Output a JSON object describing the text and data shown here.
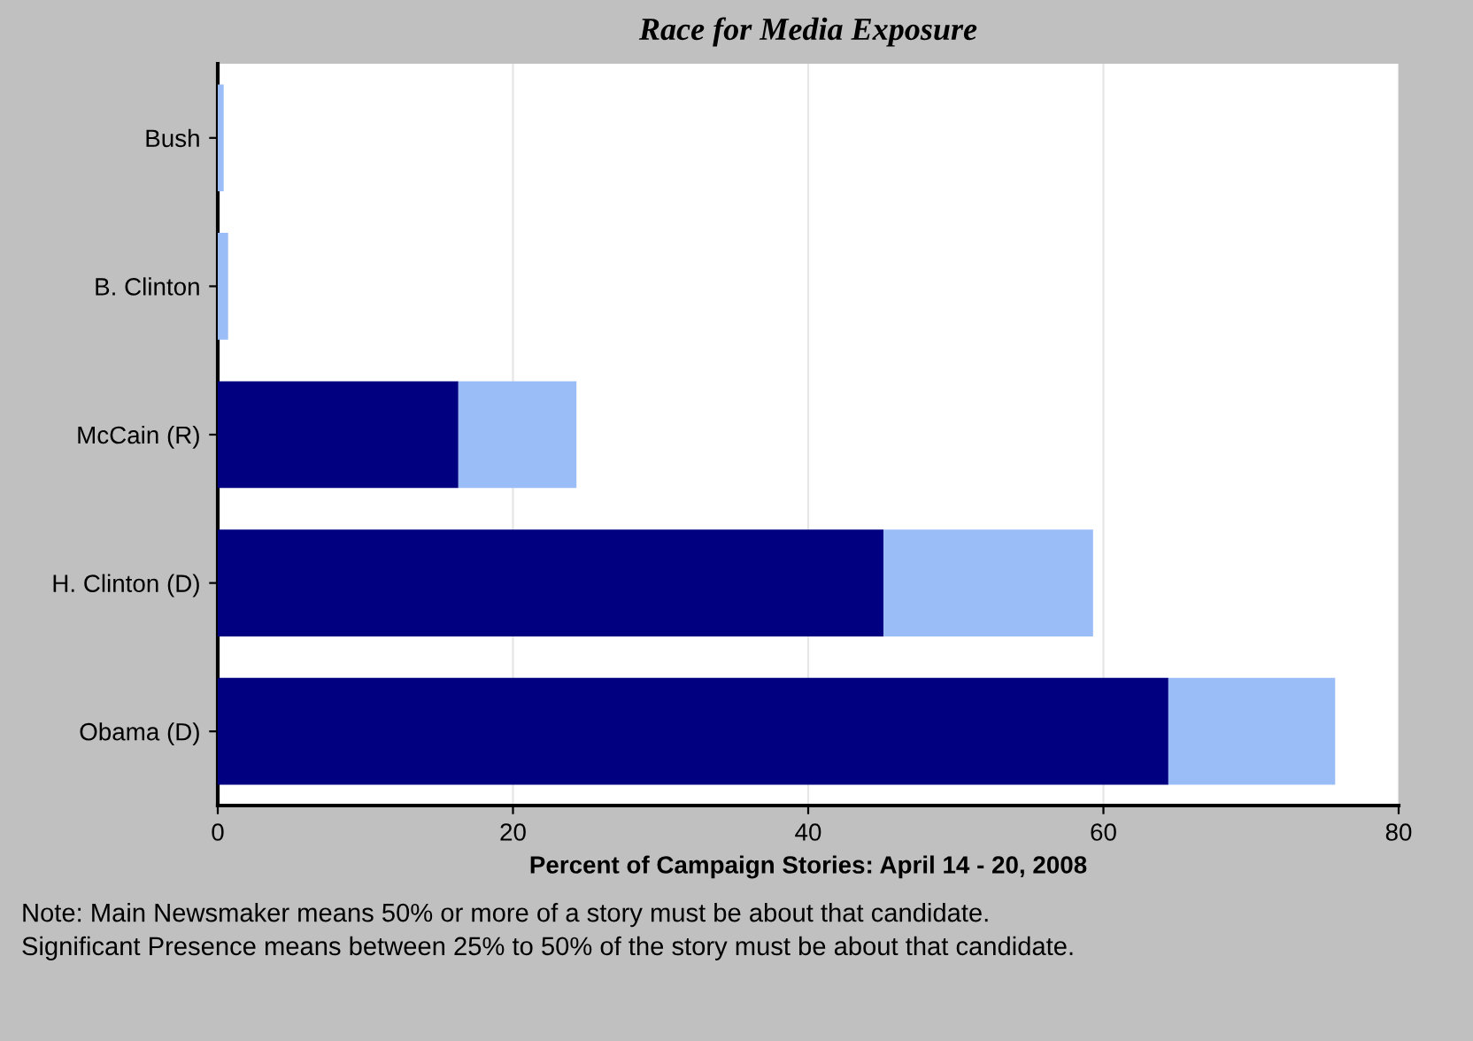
{
  "chart_data": {
    "type": "bar",
    "orientation": "horizontal",
    "stacked": true,
    "title": "Race for Media Exposure",
    "xlabel": "Percent of Campaign Stories: April 14 - 20, 2008",
    "categories": [
      "Bush",
      "B. Clinton",
      "McCain (R)",
      "H. Clinton (D)",
      "Obama (D)"
    ],
    "series": [
      {
        "color": "#000080",
        "values": [
          0,
          0,
          16.3,
          45.1,
          64.4
        ]
      },
      {
        "color": "#9bbdf7",
        "values": [
          0.4,
          0.7,
          8.0,
          14.2,
          11.3
        ]
      }
    ],
    "xlim": [
      0,
      80
    ],
    "xticks": [
      0,
      20,
      40,
      60,
      80
    ],
    "grid": "x",
    "annotations": [
      "Note: Main Newsmaker means 50% or more of a story must be about that candidate.\nSignificant Presence means between 25% to 50% of the story must be about that candidate."
    ]
  }
}
